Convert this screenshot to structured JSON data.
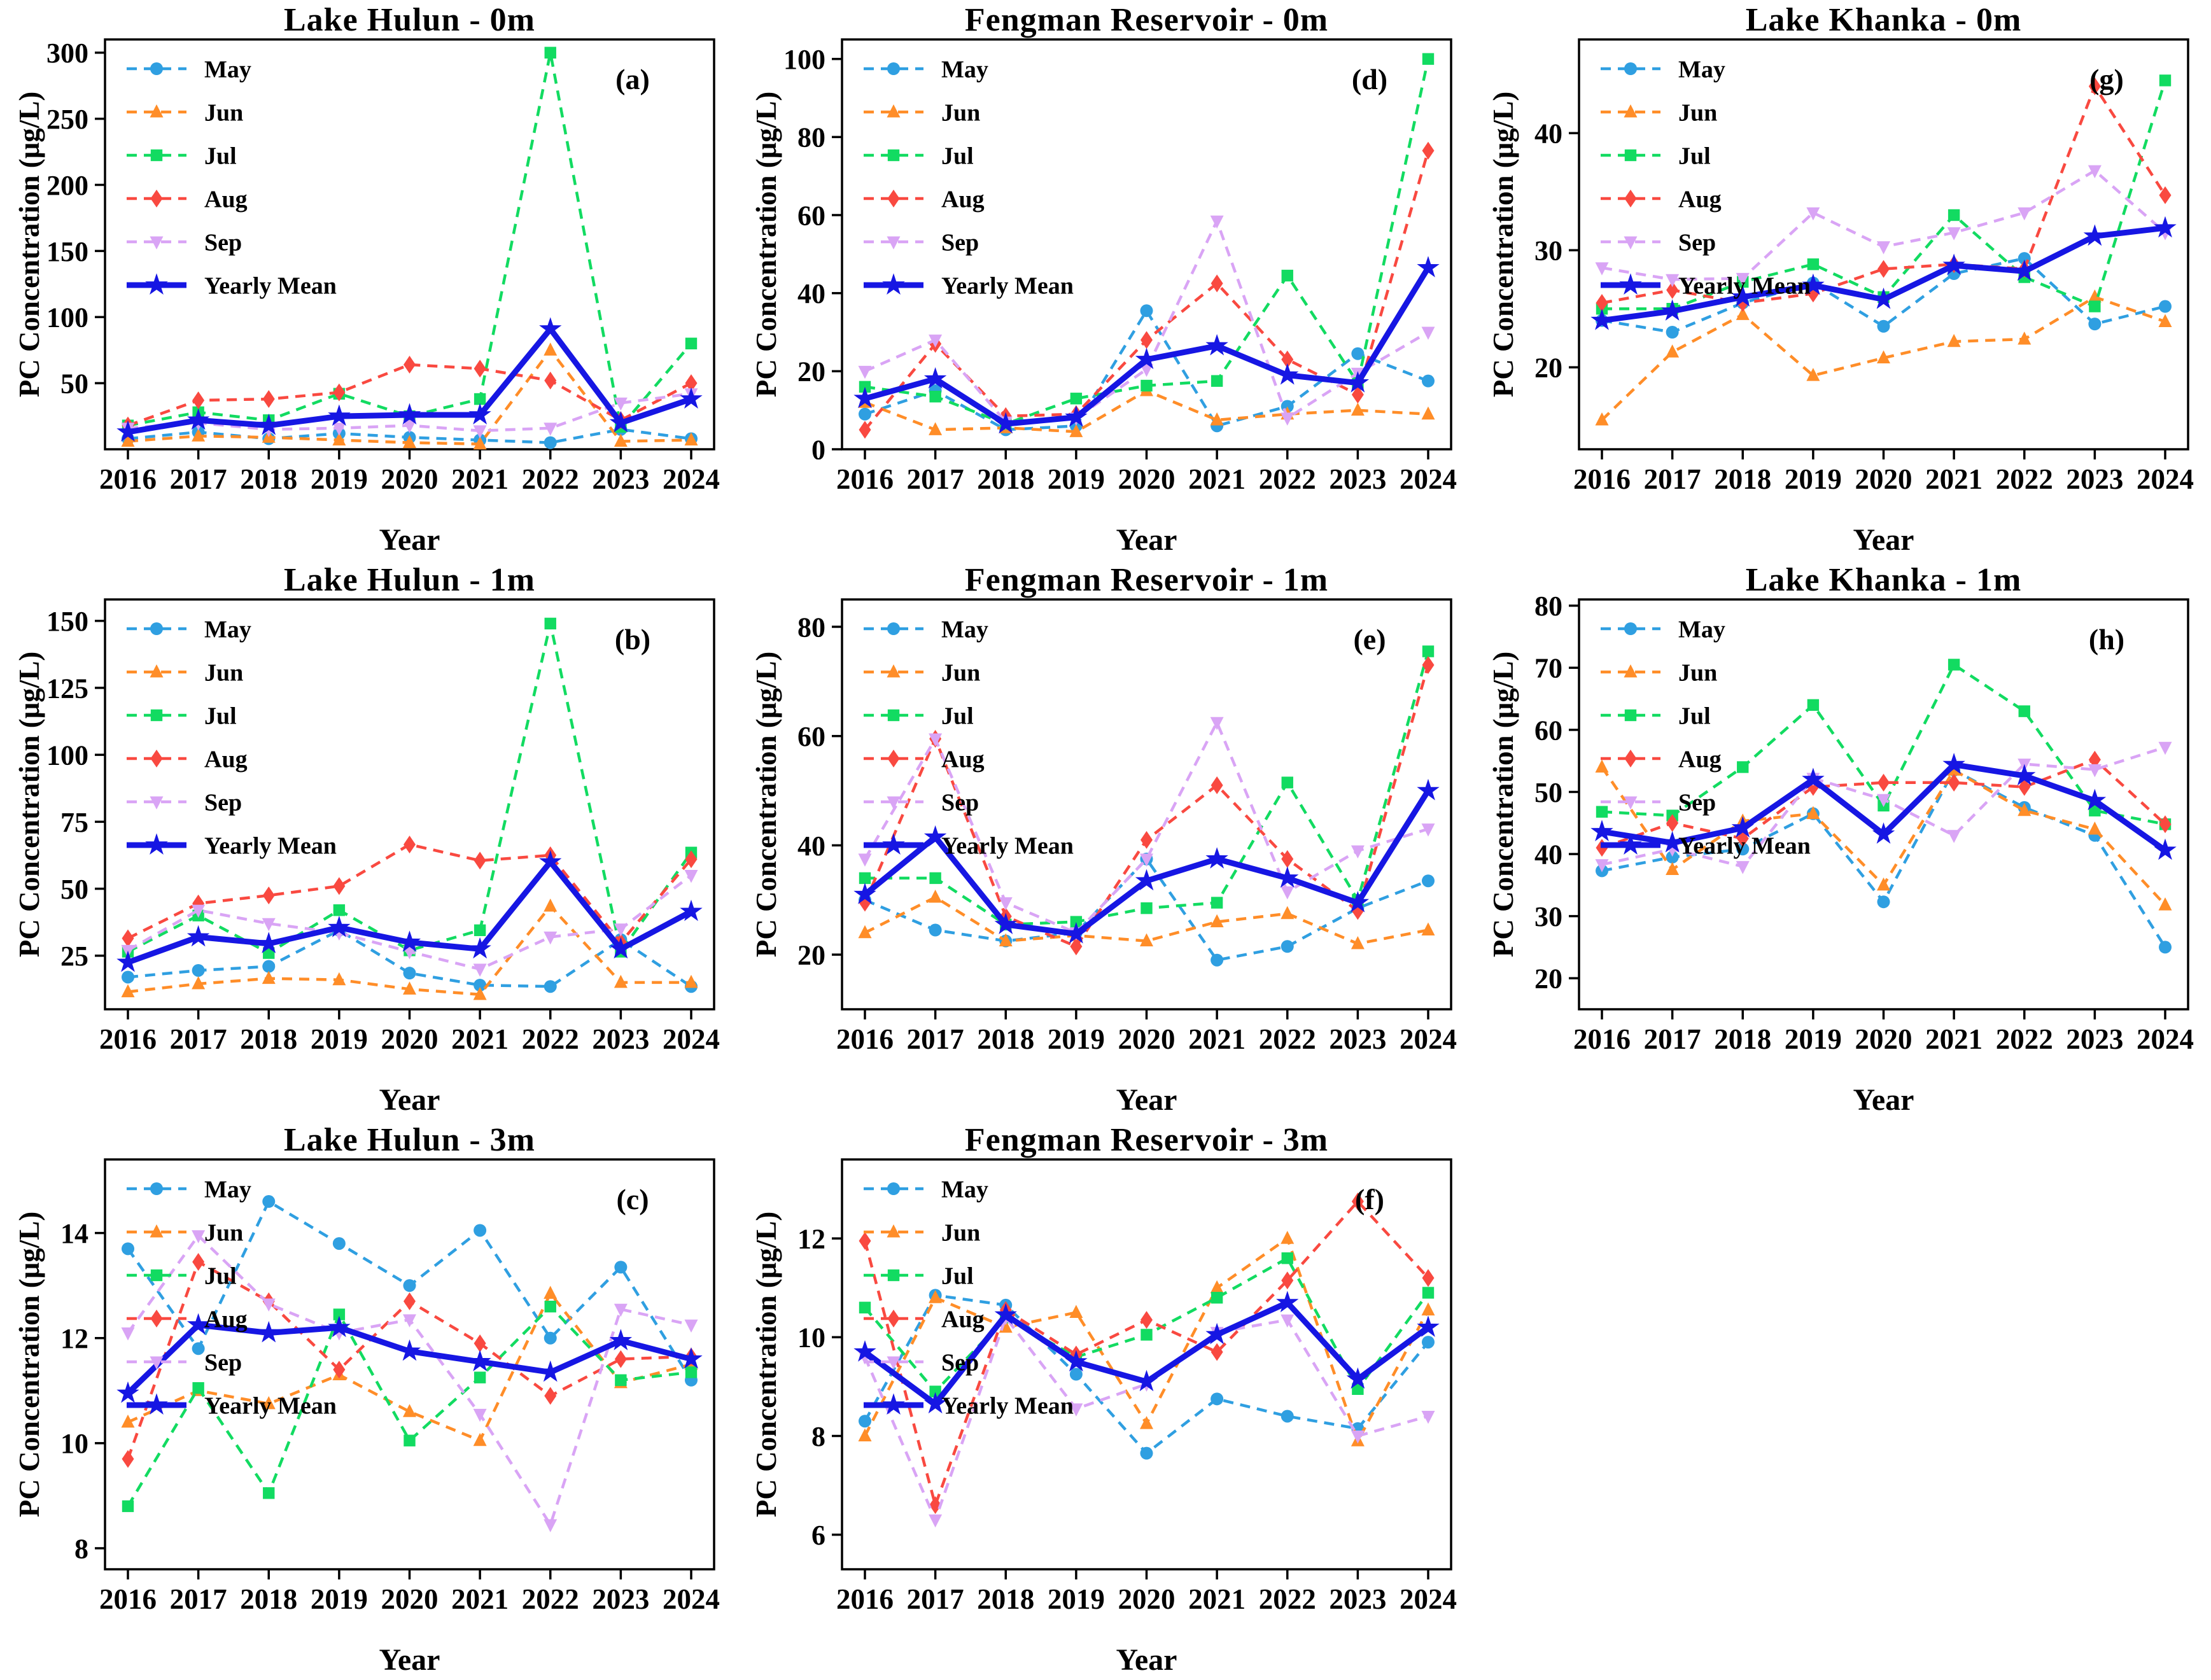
{
  "figure": {
    "xlabel": "Year",
    "ylabel": "PC Concentration (μg/L)"
  },
  "legend": {
    "position": "upper-left",
    "entries": [
      {
        "label": "May",
        "color": "#2F9FE1",
        "marker": "circle",
        "line": "dashed"
      },
      {
        "label": "Jun",
        "color": "#FF8D28",
        "marker": "triangle-up",
        "line": "dashed"
      },
      {
        "label": "Jul",
        "color": "#12DB61",
        "marker": "square",
        "line": "dashed"
      },
      {
        "label": "Aug",
        "color": "#F94940",
        "marker": "diamond",
        "line": "dashed"
      },
      {
        "label": "Sep",
        "color": "#D9A4F5",
        "marker": "triangle-down",
        "line": "dashed"
      },
      {
        "label": "Yearly Mean",
        "color": "#1616E3",
        "marker": "star",
        "line": "solid"
      }
    ]
  },
  "chart_data": [
    {
      "type": "line",
      "panel_label": "(a)",
      "title": "Lake Hulun - 0m",
      "xlabel": "Year",
      "ylabel": "PC Concentration (μg/L)",
      "x": [
        2016,
        2017,
        2018,
        2019,
        2020,
        2021,
        2022,
        2023,
        2024
      ],
      "ylim": [
        0,
        310
      ],
      "yticks": [
        50,
        100,
        150,
        200,
        250,
        300
      ],
      "grid": false,
      "series": [
        {
          "name": "May",
          "values": [
            8,
            13,
            8,
            12,
            9,
            7,
            5,
            15,
            8
          ]
        },
        {
          "name": "Jun",
          "values": [
            6,
            10,
            9,
            7,
            5,
            4,
            75,
            6,
            7
          ]
        },
        {
          "name": "Jul",
          "values": [
            18,
            28,
            22,
            42,
            25,
            38,
            300,
            17,
            80
          ]
        },
        {
          "name": "Aug",
          "values": [
            18,
            37,
            38,
            43,
            64,
            61,
            52,
            22,
            50
          ]
        },
        {
          "name": "Sep",
          "values": [
            16,
            20,
            15,
            16,
            18,
            14,
            16,
            35,
            42
          ]
        },
        {
          "name": "Yearly Mean",
          "values": [
            13,
            22,
            18,
            25,
            26,
            26,
            91,
            20,
            38
          ]
        }
      ]
    },
    {
      "type": "line",
      "panel_label": "(b)",
      "title": "Lake Hulun - 1m",
      "xlabel": "Year",
      "ylabel": "PC Concentration (μg/L)",
      "x": [
        2016,
        2017,
        2018,
        2019,
        2020,
        2021,
        2022,
        2023,
        2024
      ],
      "ylim": [
        5,
        158
      ],
      "yticks": [
        25,
        50,
        75,
        100,
        125,
        150
      ],
      "grid": false,
      "series": [
        {
          "name": "May",
          "values": [
            17,
            19.5,
            21,
            34.5,
            18.5,
            14,
            13.5,
            31,
            13.5
          ]
        },
        {
          "name": "Jun",
          "values": [
            11.5,
            14.5,
            16.5,
            16,
            12.5,
            10.5,
            43.5,
            15,
            15
          ]
        },
        {
          "name": "Jul",
          "values": [
            26.5,
            40,
            26,
            42,
            27,
            34.5,
            149,
            26.5,
            63.5
          ]
        },
        {
          "name": "Aug",
          "values": [
            31.5,
            44.5,
            47.5,
            51,
            66.5,
            60.5,
            62.5,
            30,
            61
          ]
        },
        {
          "name": "Sep",
          "values": [
            27,
            42,
            37,
            33.5,
            26.5,
            20,
            32,
            35,
            55
          ]
        },
        {
          "name": "Yearly Mean",
          "values": [
            22.5,
            32,
            29.5,
            35.5,
            30,
            27.5,
            60,
            27.5,
            41.5
          ]
        }
      ]
    },
    {
      "type": "line",
      "panel_label": "(c)",
      "title": "Lake Hulun - 3m",
      "xlabel": "Year",
      "ylabel": "PC Concentration (μg/L)",
      "x": [
        2016,
        2017,
        2018,
        2019,
        2020,
        2021,
        2022,
        2023,
        2024
      ],
      "ylim": [
        7.6,
        15.4
      ],
      "yticks": [
        8,
        10,
        12,
        14
      ],
      "grid": false,
      "series": [
        {
          "name": "May",
          "values": [
            13.7,
            11.8,
            14.6,
            13.8,
            13.0,
            14.05,
            12.0,
            13.35,
            11.2
          ]
        },
        {
          "name": "Jun",
          "values": [
            10.4,
            11.0,
            10.75,
            11.3,
            10.6,
            10.05,
            12.85,
            11.15,
            11.5
          ]
        },
        {
          "name": "Jul",
          "values": [
            8.8,
            11.05,
            9.05,
            12.45,
            10.05,
            11.25,
            12.6,
            11.2,
            11.35
          ]
        },
        {
          "name": "Aug",
          "values": [
            9.7,
            13.45,
            12.7,
            11.4,
            12.7,
            11.9,
            10.9,
            11.6,
            11.65
          ]
        },
        {
          "name": "Sep",
          "values": [
            12.1,
            13.95,
            12.65,
            12.1,
            12.35,
            10.55,
            8.45,
            12.55,
            12.25
          ]
        },
        {
          "name": "Yearly Mean",
          "values": [
            10.95,
            12.25,
            12.1,
            12.2,
            11.75,
            11.55,
            11.35,
            11.95,
            11.6
          ]
        }
      ]
    },
    {
      "type": "line",
      "panel_label": "(d)",
      "title": "Fengman Reservoir - 0m",
      "xlabel": "Year",
      "ylabel": "PC Concentration (μg/L)",
      "x": [
        2016,
        2017,
        2018,
        2019,
        2020,
        2021,
        2022,
        2023,
        2024
      ],
      "ylim": [
        0,
        105
      ],
      "yticks": [
        0,
        20,
        40,
        60,
        80,
        100
      ],
      "grid": false,
      "series": [
        {
          "name": "May",
          "values": [
            9,
            15,
            5,
            6,
            35.5,
            6,
            11,
            24.5,
            17.5
          ]
        },
        {
          "name": "Jun",
          "values": [
            12,
            5,
            5.5,
            4.5,
            15,
            7.5,
            9,
            10,
            9
          ]
        },
        {
          "name": "Jul",
          "values": [
            16,
            13.5,
            6.5,
            13,
            16.3,
            17.5,
            44.5,
            17,
            100
          ]
        },
        {
          "name": "Aug",
          "values": [
            5,
            27,
            8.5,
            9,
            28,
            42.5,
            23,
            14,
            76.5
          ]
        },
        {
          "name": "Sep",
          "values": [
            20,
            28,
            7,
            8,
            20.5,
            58.5,
            8,
            19.5,
            30
          ]
        },
        {
          "name": "Yearly Mean",
          "values": [
            13,
            18,
            6.5,
            8.2,
            23,
            26.5,
            19,
            17,
            46.5
          ]
        }
      ]
    },
    {
      "type": "line",
      "panel_label": "(e)",
      "title": "Fengman Reservoir - 1m",
      "xlabel": "Year",
      "ylabel": "PC Concentration (μg/L)",
      "x": [
        2016,
        2017,
        2018,
        2019,
        2020,
        2021,
        2022,
        2023,
        2024
      ],
      "ylim": [
        10,
        85
      ],
      "yticks": [
        20,
        40,
        60,
        80
      ],
      "grid": false,
      "series": [
        {
          "name": "May",
          "values": [
            30,
            24.5,
            22.5,
            24,
            37.5,
            19,
            21.5,
            28.5,
            33.5
          ]
        },
        {
          "name": "Jun",
          "values": [
            24,
            30.5,
            22.5,
            23.5,
            22.5,
            26,
            27.5,
            22,
            24.5
          ]
        },
        {
          "name": "Jul",
          "values": [
            34,
            34,
            25.5,
            26,
            28.5,
            29.5,
            51.5,
            30,
            75.5
          ]
        },
        {
          "name": "Aug",
          "values": [
            29.5,
            59.5,
            27,
            21.5,
            41,
            51,
            37.5,
            28,
            73
          ]
        },
        {
          "name": "Sep",
          "values": [
            37.5,
            59.5,
            29.5,
            24,
            37.5,
            62.5,
            31.5,
            39,
            43
          ]
        },
        {
          "name": "Yearly Mean",
          "values": [
            31,
            41.5,
            25.5,
            23.8,
            33.5,
            37.5,
            34,
            29.5,
            50
          ]
        }
      ]
    },
    {
      "type": "line",
      "panel_label": "(f)",
      "title": "Fengman Reservoir - 3m",
      "xlabel": "Year",
      "ylabel": "PC Concentration (μg/L)",
      "x": [
        2016,
        2017,
        2018,
        2019,
        2020,
        2021,
        2022,
        2023,
        2024
      ],
      "ylim": [
        5.3,
        13.6
      ],
      "yticks": [
        6,
        8,
        10,
        12
      ],
      "grid": false,
      "series": [
        {
          "name": "May",
          "values": [
            8.3,
            10.85,
            10.65,
            9.25,
            7.65,
            8.75,
            8.4,
            8.15,
            9.9
          ]
        },
        {
          "name": "Jun",
          "values": [
            8.0,
            10.8,
            10.2,
            10.5,
            8.25,
            11.0,
            12.0,
            7.9,
            10.55
          ]
        },
        {
          "name": "Jul",
          "values": [
            10.6,
            8.9,
            10.4,
            9.6,
            10.05,
            10.8,
            11.6,
            8.95,
            10.9
          ]
        },
        {
          "name": "Aug",
          "values": [
            11.95,
            6.6,
            10.55,
            9.65,
            10.35,
            9.7,
            11.15,
            12.75,
            11.2
          ]
        },
        {
          "name": "Sep",
          "values": [
            9.6,
            6.3,
            10.4,
            8.55,
            9.05,
            10.1,
            10.35,
            8.0,
            8.4
          ]
        },
        {
          "name": "Yearly Mean",
          "values": [
            9.7,
            8.65,
            10.45,
            9.5,
            9.1,
            10.05,
            10.7,
            9.15,
            10.2
          ]
        }
      ]
    },
    {
      "type": "line",
      "panel_label": "(g)",
      "title": "Lake Khanka - 0m",
      "xlabel": "Year",
      "ylabel": "PC Concentration (μg/L)",
      "x": [
        2016,
        2017,
        2018,
        2019,
        2020,
        2021,
        2022,
        2023,
        2024
      ],
      "ylim": [
        13,
        48
      ],
      "yticks": [
        20,
        30,
        40
      ],
      "grid": false,
      "series": [
        {
          "name": "May",
          "values": [
            24,
            23,
            25.5,
            27.2,
            23.5,
            28,
            29.3,
            23.7,
            25.2
          ]
        },
        {
          "name": "Jun",
          "values": [
            15.5,
            21.3,
            24.5,
            19.3,
            20.8,
            22.2,
            22.4,
            26,
            23.9
          ]
        },
        {
          "name": "Jul",
          "values": [
            25,
            25,
            27.3,
            28.8,
            26,
            33,
            27.7,
            25.2,
            44.5
          ]
        },
        {
          "name": "Aug",
          "values": [
            25.5,
            26.6,
            25.5,
            26.3,
            28.4,
            28.8,
            28.4,
            44,
            34.7
          ]
        },
        {
          "name": "Sep",
          "values": [
            28.5,
            27.5,
            27.6,
            33.2,
            30.3,
            31.5,
            33.2,
            36.8,
            31.5
          ]
        },
        {
          "name": "Yearly Mean",
          "values": [
            24,
            24.8,
            26,
            27,
            25.8,
            28.7,
            28.2,
            31.2,
            31.9
          ]
        }
      ]
    },
    {
      "type": "line",
      "panel_label": "(h)",
      "title": "Lake Khanka - 1m",
      "xlabel": "Year",
      "ylabel": "PC Concentration (μg/L)",
      "x": [
        2016,
        2017,
        2018,
        2019,
        2020,
        2021,
        2022,
        2023,
        2024
      ],
      "ylim": [
        15,
        81
      ],
      "yticks": [
        20,
        30,
        40,
        50,
        60,
        70,
        80
      ],
      "grid": false,
      "series": [
        {
          "name": "May",
          "values": [
            37.3,
            39.5,
            40.8,
            46.5,
            32.3,
            53.5,
            47.5,
            43,
            25
          ]
        },
        {
          "name": "Jun",
          "values": [
            54,
            37.5,
            45.3,
            46.5,
            35,
            53.5,
            47,
            44,
            31.8
          ]
        },
        {
          "name": "Jul",
          "values": [
            46.8,
            46.2,
            54,
            64,
            47.8,
            70.5,
            63,
            47,
            44.8
          ]
        },
        {
          "name": "Aug",
          "values": [
            41,
            45,
            42.5,
            50.8,
            51.5,
            51.5,
            50.8,
            55.2,
            44.8
          ]
        },
        {
          "name": "Sep",
          "values": [
            38.3,
            40.8,
            38,
            52.2,
            48.8,
            43,
            54.5,
            53.6,
            57.2
          ]
        },
        {
          "name": "Yearly Mean",
          "values": [
            43.6,
            41.8,
            44.2,
            52,
            43.2,
            54.4,
            52.6,
            48.6,
            40.6
          ]
        }
      ]
    }
  ]
}
